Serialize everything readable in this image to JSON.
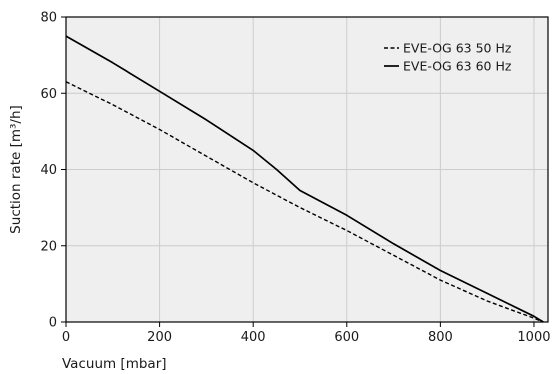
{
  "chart_data": {
    "type": "line",
    "xlabel": "Vacuum [mbar]",
    "ylabel": "Suction rate [m³/h]",
    "xlim": [
      0,
      1030
    ],
    "ylim": [
      0,
      80
    ],
    "x_ticks": [
      0,
      200,
      400,
      600,
      800,
      1000
    ],
    "y_ticks": [
      0,
      20,
      40,
      60,
      80
    ],
    "grid": true,
    "legend_position": "top-right",
    "series": [
      {
        "name": "EVE-OG 63 50 Hz",
        "style": "dashed",
        "color": "#000000",
        "points": [
          [
            0,
            63
          ],
          [
            100,
            57
          ],
          [
            200,
            50.5
          ],
          [
            300,
            43.5
          ],
          [
            400,
            36.5
          ],
          [
            500,
            30
          ],
          [
            600,
            24
          ],
          [
            700,
            17.5
          ],
          [
            800,
            11
          ],
          [
            900,
            5.5
          ],
          [
            1000,
            1
          ],
          [
            1020,
            0
          ]
        ]
      },
      {
        "name": "EVE-OG 63 60 Hz",
        "style": "solid",
        "color": "#000000",
        "points": [
          [
            0,
            75
          ],
          [
            100,
            68
          ],
          [
            200,
            60.5
          ],
          [
            300,
            53
          ],
          [
            400,
            45
          ],
          [
            450,
            40
          ],
          [
            500,
            34.5
          ],
          [
            600,
            28
          ],
          [
            700,
            20.5
          ],
          [
            800,
            13.5
          ],
          [
            900,
            7.5
          ],
          [
            1000,
            1.5
          ],
          [
            1020,
            0
          ]
        ]
      }
    ]
  },
  "style": {
    "plot_background": "#efefef",
    "grid_color": "#cccccc",
    "axis_color": "#000000"
  }
}
